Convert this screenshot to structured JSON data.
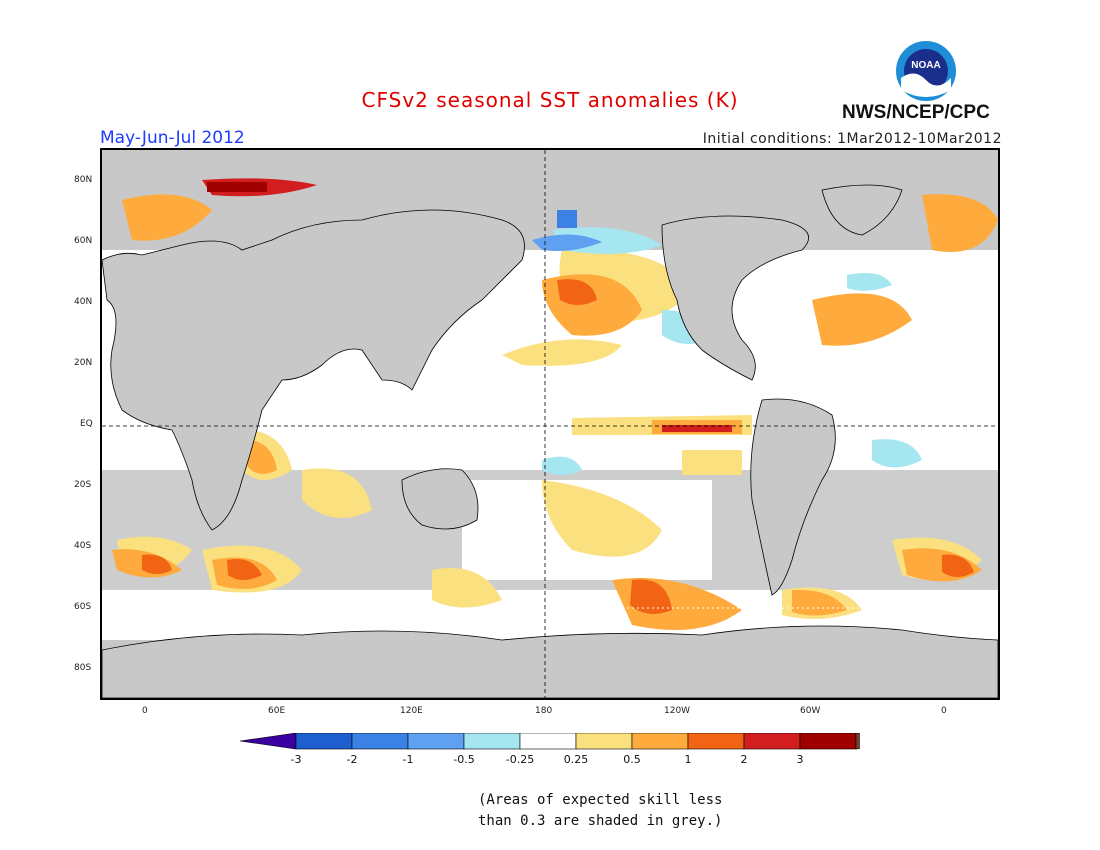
{
  "header": {
    "title": "CFSv2 seasonal SST anomalies (K)",
    "season": "May-Jun-Jul 2012",
    "initial_conditions": "Initial conditions: 1Mar2012-10Mar2012",
    "agency": "NWS/NCEP/CPC",
    "logo_text": "NOAA"
  },
  "colors": {
    "title": "#e00000",
    "season": "#1e3cff",
    "land": "#c8c8c8",
    "noskill": "#c8c8c8"
  },
  "map": {
    "lat_labels": [
      "80N",
      "60N",
      "40N",
      "20N",
      "EQ",
      "20S",
      "40S",
      "60S",
      "80S"
    ],
    "lon_labels": [
      "0",
      "60E",
      "120E",
      "180",
      "120W",
      "60W",
      "0"
    ]
  },
  "colorbar": {
    "tick_labels": [
      "-3",
      "-2",
      "-1",
      "-0.5",
      "-0.25",
      "0.25",
      "0.5",
      "1",
      "2",
      "3"
    ],
    "colors": [
      "#3a00a0",
      "#1e5fd0",
      "#3c82e6",
      "#5fa0f0",
      "#a6e6f0",
      "#ffffff",
      "#fbe080",
      "#ffaa3c",
      "#f06414",
      "#d21e1e",
      "#a00000",
      "#6e4632"
    ]
  },
  "note": {
    "line1": "(Areas of expected skill less",
    "line2": "than 0.3 are shaded in grey.)"
  }
}
